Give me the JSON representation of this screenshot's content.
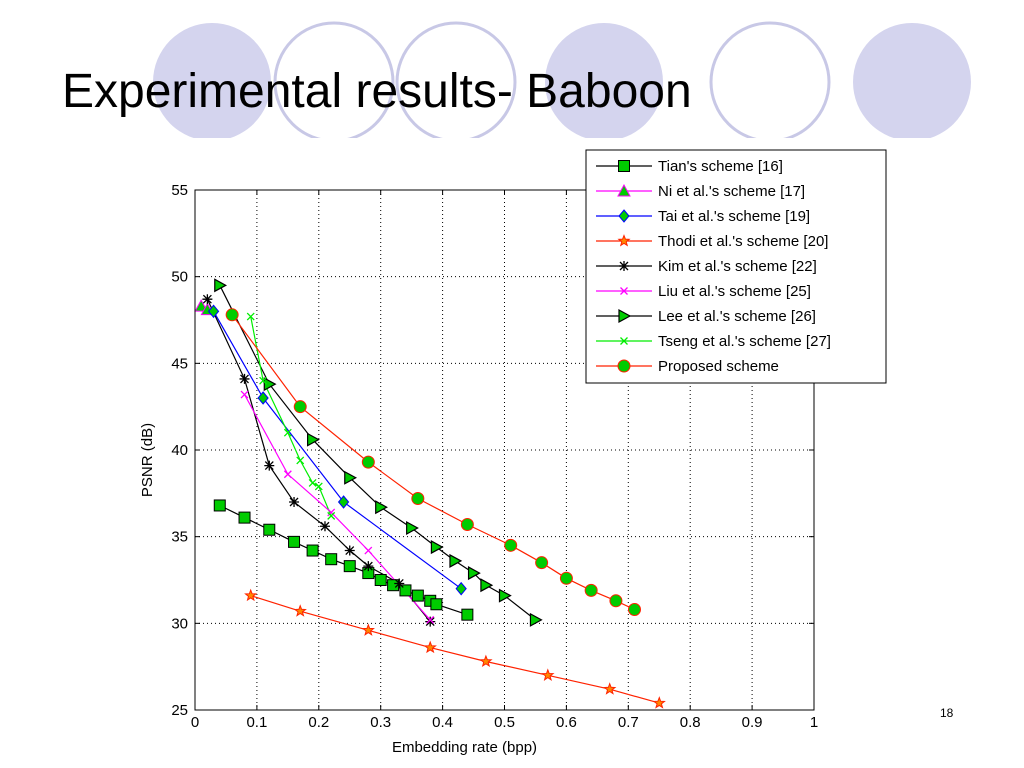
{
  "slide": {
    "title": "Experimental results- Baboon",
    "page_number": "18",
    "decor_colors": {
      "filled": "#d4d4ee",
      "outline": "#c8c8e6"
    }
  },
  "chart_data": {
    "type": "line",
    "xlabel": "Embedding rate (bpp)",
    "ylabel": "PSNR (dB)",
    "xlim": [
      0,
      1
    ],
    "ylim": [
      25,
      55
    ],
    "xticks": [
      0,
      0.1,
      0.2,
      0.3,
      0.4,
      0.5,
      0.6,
      0.7,
      0.8,
      0.9,
      1
    ],
    "xtick_labels": [
      "0",
      "0.1",
      "0.2",
      "0.3",
      "0.4",
      "0.5",
      "0.6",
      "0.7",
      "0.8",
      "0.9",
      "1"
    ],
    "yticks": [
      25,
      30,
      35,
      40,
      45,
      50,
      55
    ],
    "ytick_labels": [
      "25",
      "30",
      "35",
      "40",
      "45",
      "50",
      "55"
    ],
    "grid": true,
    "legend_position": "top-right",
    "series": [
      {
        "name": "Tian's scheme [16]",
        "color": "#000000",
        "marker": "square",
        "marker_fill": "#00cc00",
        "points": [
          [
            0.04,
            36.8
          ],
          [
            0.08,
            36.1
          ],
          [
            0.12,
            35.4
          ],
          [
            0.16,
            34.7
          ],
          [
            0.19,
            34.2
          ],
          [
            0.22,
            33.7
          ],
          [
            0.25,
            33.3
          ],
          [
            0.28,
            32.9
          ],
          [
            0.3,
            32.5
          ],
          [
            0.32,
            32.2
          ],
          [
            0.34,
            31.9
          ],
          [
            0.36,
            31.6
          ],
          [
            0.38,
            31.3
          ],
          [
            0.39,
            31.1
          ],
          [
            0.44,
            30.5
          ]
        ]
      },
      {
        "name": "Ni et al.'s scheme [17]",
        "color": "#ff00ff",
        "marker": "triangle-up",
        "marker_fill": "#00cc00",
        "points": [
          [
            0.01,
            48.3
          ],
          [
            0.02,
            48.1
          ]
        ]
      },
      {
        "name": "Tai et al.'s scheme [19]",
        "color": "#0000ff",
        "marker": "diamond",
        "marker_fill": "#00cc00",
        "points": [
          [
            0.03,
            48.0
          ],
          [
            0.11,
            43.0
          ],
          [
            0.24,
            37.0
          ],
          [
            0.43,
            32.0
          ]
        ]
      },
      {
        "name": "Thodi et al.'s scheme [20]",
        "color": "#ff2200",
        "marker": "star",
        "marker_fill": "#ff8800",
        "points": [
          [
            0.09,
            31.6
          ],
          [
            0.17,
            30.7
          ],
          [
            0.28,
            29.6
          ],
          [
            0.38,
            28.6
          ],
          [
            0.47,
            27.8
          ],
          [
            0.57,
            27.0
          ],
          [
            0.67,
            26.2
          ],
          [
            0.75,
            25.4
          ]
        ]
      },
      {
        "name": "Kim et al.'s scheme [22]",
        "color": "#000000",
        "marker": "asterisk",
        "marker_fill": "#000000",
        "points": [
          [
            0.02,
            48.7
          ],
          [
            0.08,
            44.1
          ],
          [
            0.12,
            39.1
          ],
          [
            0.16,
            37.0
          ],
          [
            0.21,
            35.6
          ],
          [
            0.25,
            34.2
          ],
          [
            0.28,
            33.3
          ],
          [
            0.33,
            32.3
          ],
          [
            0.38,
            30.1
          ]
        ]
      },
      {
        "name": "Liu et al.'s scheme [25]",
        "color": "#ff00ff",
        "marker": "x",
        "marker_fill": "#ff00ff",
        "points": [
          [
            0.08,
            43.2
          ],
          [
            0.15,
            38.6
          ],
          [
            0.22,
            36.4
          ],
          [
            0.28,
            34.2
          ],
          [
            0.38,
            30.2
          ]
        ]
      },
      {
        "name": "Lee et al.'s scheme [26]",
        "color": "#000000",
        "marker": "triangle-right",
        "marker_fill": "#00cc00",
        "points": [
          [
            0.04,
            49.5
          ],
          [
            0.12,
            43.8
          ],
          [
            0.19,
            40.6
          ],
          [
            0.25,
            38.4
          ],
          [
            0.3,
            36.7
          ],
          [
            0.35,
            35.5
          ],
          [
            0.39,
            34.4
          ],
          [
            0.42,
            33.6
          ],
          [
            0.45,
            32.9
          ],
          [
            0.47,
            32.2
          ],
          [
            0.5,
            31.6
          ],
          [
            0.55,
            30.2
          ]
        ]
      },
      {
        "name": "Tseng et al.'s scheme [27]",
        "color": "#00ee00",
        "marker": "x",
        "marker_fill": "#00ee00",
        "points": [
          [
            0.09,
            47.7
          ],
          [
            0.11,
            44.0
          ],
          [
            0.15,
            41.0
          ],
          [
            0.17,
            39.4
          ],
          [
            0.19,
            38.1
          ],
          [
            0.2,
            37.9
          ],
          [
            0.22,
            36.2
          ]
        ]
      },
      {
        "name": "Proposed scheme",
        "color": "#ff2200",
        "marker": "circle",
        "marker_fill": "#00cc00",
        "points": [
          [
            0.06,
            47.8
          ],
          [
            0.17,
            42.5
          ],
          [
            0.28,
            39.3
          ],
          [
            0.36,
            37.2
          ],
          [
            0.44,
            35.7
          ],
          [
            0.51,
            34.5
          ],
          [
            0.56,
            33.5
          ],
          [
            0.6,
            32.6
          ],
          [
            0.64,
            31.9
          ],
          [
            0.68,
            31.3
          ],
          [
            0.71,
            30.8
          ]
        ]
      }
    ]
  }
}
